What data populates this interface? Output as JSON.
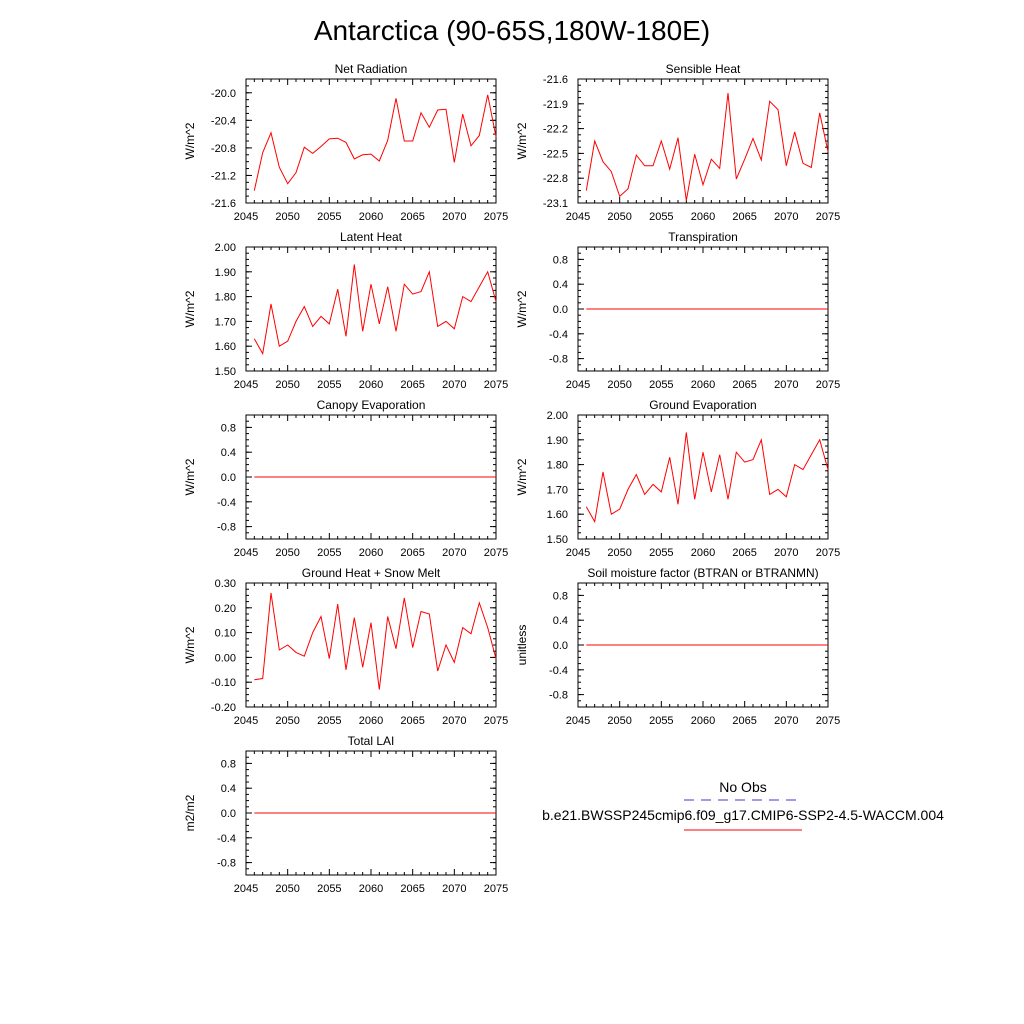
{
  "figure": {
    "title": "Antarctica (90-65S,180W-180E)"
  },
  "legend": {
    "items": [
      {
        "label": "No Obs",
        "color": "#3a3ad0",
        "dash": true
      },
      {
        "label": "b.e21.BWSSP245cmip6.f09_g17.CMIP6-SSP2-4.5-WACCM.004",
        "color": "#ff0000",
        "dash": false
      }
    ]
  },
  "chart_data": [
    {
      "type": "line",
      "title": "Net Radiation",
      "ylabel": "W/m^2",
      "xlim": [
        2045,
        2075
      ],
      "ylim": [
        -21.6,
        -19.8
      ],
      "yticks": [
        "-20.0",
        "-20.4",
        "-20.8",
        "-21.2",
        "-21.6"
      ],
      "ytick_values": [
        -20.0,
        -20.4,
        -20.8,
        -21.2,
        -21.6
      ],
      "xticks": [
        "2045",
        "2050",
        "2055",
        "2060",
        "2065",
        "2070",
        "2075"
      ],
      "series": [
        {
          "color": "#ff0000",
          "x": [
            2046,
            2047,
            2048,
            2049,
            2050,
            2051,
            2052,
            2053,
            2054,
            2055,
            2056,
            2057,
            2058,
            2059,
            2060,
            2061,
            2062,
            2063,
            2064,
            2065,
            2066,
            2067,
            2068,
            2069,
            2070,
            2071,
            2072,
            2073,
            2074,
            2075
          ],
          "y": [
            -21.42,
            -20.87,
            -20.58,
            -21.08,
            -21.32,
            -21.16,
            -20.79,
            -20.88,
            -20.78,
            -20.67,
            -20.66,
            -20.72,
            -20.96,
            -20.9,
            -20.89,
            -20.99,
            -20.69,
            -20.08,
            -20.7,
            -20.7,
            -20.29,
            -20.5,
            -20.25,
            -20.24,
            -21.01,
            -20.31,
            -20.77,
            -20.62,
            -20.03,
            -20.64
          ]
        }
      ]
    },
    {
      "type": "line",
      "title": "Sensible Heat",
      "ylabel": "W/m^2",
      "xlim": [
        2045,
        2075
      ],
      "ylim": [
        -23.1,
        -21.6
      ],
      "yticks": [
        "-21.6",
        "-21.9",
        "-22.2",
        "-22.5",
        "-22.8",
        "-23.1"
      ],
      "ytick_values": [
        -21.6,
        -21.9,
        -22.2,
        -22.5,
        -22.8,
        -23.1
      ],
      "xticks": [
        "2045",
        "2050",
        "2055",
        "2060",
        "2065",
        "2070",
        "2075"
      ],
      "series": [
        {
          "color": "#ff0000",
          "x": [
            2046,
            2047,
            2048,
            2049,
            2050,
            2051,
            2052,
            2053,
            2054,
            2055,
            2056,
            2057,
            2058,
            2059,
            2060,
            2061,
            2062,
            2063,
            2064,
            2065,
            2066,
            2067,
            2068,
            2069,
            2070,
            2071,
            2072,
            2073,
            2074,
            2075
          ],
          "y": [
            -22.95,
            -22.35,
            -22.6,
            -22.72,
            -23.02,
            -22.93,
            -22.52,
            -22.65,
            -22.65,
            -22.35,
            -22.69,
            -22.31,
            -23.07,
            -22.51,
            -22.88,
            -22.57,
            -22.68,
            -21.77,
            -22.81,
            -22.57,
            -22.32,
            -22.58,
            -21.87,
            -21.97,
            -22.65,
            -22.24,
            -22.62,
            -22.67,
            -22.01,
            -22.48
          ]
        }
      ]
    },
    {
      "type": "line",
      "title": "Latent Heat",
      "ylabel": "W/m^2",
      "xlim": [
        2045,
        2075
      ],
      "ylim": [
        1.5,
        2.0
      ],
      "yticks": [
        "2.00",
        "1.90",
        "1.80",
        "1.70",
        "1.60",
        "1.50"
      ],
      "ytick_values": [
        2.0,
        1.9,
        1.8,
        1.7,
        1.6,
        1.5
      ],
      "xticks": [
        "2045",
        "2050",
        "2055",
        "2060",
        "2065",
        "2070",
        "2075"
      ],
      "series": [
        {
          "color": "#ff0000",
          "x": [
            2046,
            2047,
            2048,
            2049,
            2050,
            2051,
            2052,
            2053,
            2054,
            2055,
            2056,
            2057,
            2058,
            2059,
            2060,
            2061,
            2062,
            2063,
            2064,
            2065,
            2066,
            2067,
            2068,
            2069,
            2070,
            2071,
            2072,
            2073,
            2074,
            2075
          ],
          "y": [
            1.63,
            1.57,
            1.77,
            1.6,
            1.62,
            1.7,
            1.76,
            1.68,
            1.72,
            1.69,
            1.83,
            1.64,
            1.93,
            1.66,
            1.85,
            1.69,
            1.84,
            1.66,
            1.85,
            1.81,
            1.82,
            1.9,
            1.68,
            1.7,
            1.67,
            1.8,
            1.78,
            1.84,
            1.9,
            1.78
          ]
        }
      ]
    },
    {
      "type": "line",
      "title": "Transpiration",
      "ylabel": "W/m^2",
      "xlim": [
        2045,
        2075
      ],
      "ylim": [
        -1.0,
        1.0
      ],
      "yticks": [
        "0.8",
        "0.4",
        "0.0",
        "-0.4",
        "-0.8"
      ],
      "ytick_values": [
        0.8,
        0.4,
        0.0,
        -0.4,
        -0.8
      ],
      "xticks": [
        "2045",
        "2050",
        "2055",
        "2060",
        "2065",
        "2070",
        "2075"
      ],
      "series": [
        {
          "color": "#ff0000",
          "x": [
            2046,
            2075
          ],
          "y": [
            0.0,
            0.0
          ]
        }
      ]
    },
    {
      "type": "line",
      "title": "Canopy Evaporation",
      "ylabel": "W/m^2",
      "xlim": [
        2045,
        2075
      ],
      "ylim": [
        -1.0,
        1.0
      ],
      "yticks": [
        "0.8",
        "0.4",
        "0.0",
        "-0.4",
        "-0.8"
      ],
      "ytick_values": [
        0.8,
        0.4,
        0.0,
        -0.4,
        -0.8
      ],
      "xticks": [
        "2045",
        "2050",
        "2055",
        "2060",
        "2065",
        "2070",
        "2075"
      ],
      "series": [
        {
          "color": "#ff0000",
          "x": [
            2046,
            2075
          ],
          "y": [
            0.0,
            0.0
          ]
        }
      ]
    },
    {
      "type": "line",
      "title": "Ground Evaporation",
      "ylabel": "W/m^2",
      "xlim": [
        2045,
        2075
      ],
      "ylim": [
        1.5,
        2.0
      ],
      "yticks": [
        "2.00",
        "1.90",
        "1.80",
        "1.70",
        "1.60",
        "1.50"
      ],
      "ytick_values": [
        2.0,
        1.9,
        1.8,
        1.7,
        1.6,
        1.5
      ],
      "xticks": [
        "2045",
        "2050",
        "2055",
        "2060",
        "2065",
        "2070",
        "2075"
      ],
      "series": [
        {
          "color": "#ff0000",
          "x": [
            2046,
            2047,
            2048,
            2049,
            2050,
            2051,
            2052,
            2053,
            2054,
            2055,
            2056,
            2057,
            2058,
            2059,
            2060,
            2061,
            2062,
            2063,
            2064,
            2065,
            2066,
            2067,
            2068,
            2069,
            2070,
            2071,
            2072,
            2073,
            2074,
            2075
          ],
          "y": [
            1.63,
            1.57,
            1.77,
            1.6,
            1.62,
            1.7,
            1.76,
            1.68,
            1.72,
            1.69,
            1.83,
            1.64,
            1.93,
            1.66,
            1.85,
            1.69,
            1.84,
            1.66,
            1.85,
            1.81,
            1.82,
            1.9,
            1.68,
            1.7,
            1.67,
            1.8,
            1.78,
            1.84,
            1.9,
            1.78
          ]
        }
      ]
    },
    {
      "type": "line",
      "title": "Ground Heat + Snow Melt",
      "ylabel": "W/m^2",
      "xlim": [
        2045,
        2075
      ],
      "ylim": [
        -0.2,
        0.3
      ],
      "yticks": [
        "0.30",
        "0.20",
        "0.10",
        "0.00",
        "-0.10",
        "-0.20"
      ],
      "ytick_values": [
        0.3,
        0.2,
        0.1,
        0.0,
        -0.1,
        -0.2
      ],
      "xticks": [
        "2045",
        "2050",
        "2055",
        "2060",
        "2065",
        "2070",
        "2075"
      ],
      "series": [
        {
          "color": "#ff0000",
          "x": [
            2046,
            2047,
            2048,
            2049,
            2050,
            2051,
            2052,
            2053,
            2054,
            2055,
            2056,
            2057,
            2058,
            2059,
            2060,
            2061,
            2062,
            2063,
            2064,
            2065,
            2066,
            2067,
            2068,
            2069,
            2070,
            2071,
            2072,
            2073,
            2074,
            2075
          ],
          "y": [
            -0.09,
            -0.085,
            0.26,
            0.03,
            0.05,
            0.02,
            0.005,
            0.1,
            0.165,
            -0.005,
            0.215,
            -0.05,
            0.16,
            -0.04,
            0.14,
            -0.13,
            0.165,
            0.035,
            0.24,
            0.04,
            0.185,
            0.175,
            -0.055,
            0.05,
            -0.02,
            0.12,
            0.095,
            0.22,
            0.12,
            -0.005
          ]
        }
      ]
    },
    {
      "type": "line",
      "title": "Soil moisture factor (BTRAN or BTRANMN)",
      "ylabel": "unitless",
      "xlim": [
        2045,
        2075
      ],
      "ylim": [
        -1.0,
        1.0
      ],
      "yticks": [
        "0.8",
        "0.4",
        "0.0",
        "-0.4",
        "-0.8"
      ],
      "ytick_values": [
        0.8,
        0.4,
        0.0,
        -0.4,
        -0.8
      ],
      "xticks": [
        "2045",
        "2050",
        "2055",
        "2060",
        "2065",
        "2070",
        "2075"
      ],
      "series": [
        {
          "color": "#ff0000",
          "x": [
            2046,
            2075
          ],
          "y": [
            0.0,
            0.0
          ]
        }
      ]
    },
    {
      "type": "line",
      "title": "Total LAI",
      "ylabel": "m2/m2",
      "xlim": [
        2045,
        2075
      ],
      "ylim": [
        -1.0,
        1.0
      ],
      "yticks": [
        "0.8",
        "0.4",
        "0.0",
        "-0.4",
        "-0.8"
      ],
      "ytick_values": [
        0.8,
        0.4,
        0.0,
        -0.4,
        -0.8
      ],
      "xticks": [
        "2045",
        "2050",
        "2055",
        "2060",
        "2065",
        "2070",
        "2075"
      ],
      "series": [
        {
          "color": "#ff0000",
          "x": [
            2046,
            2075
          ],
          "y": [
            0.0,
            0.0
          ]
        }
      ]
    }
  ]
}
